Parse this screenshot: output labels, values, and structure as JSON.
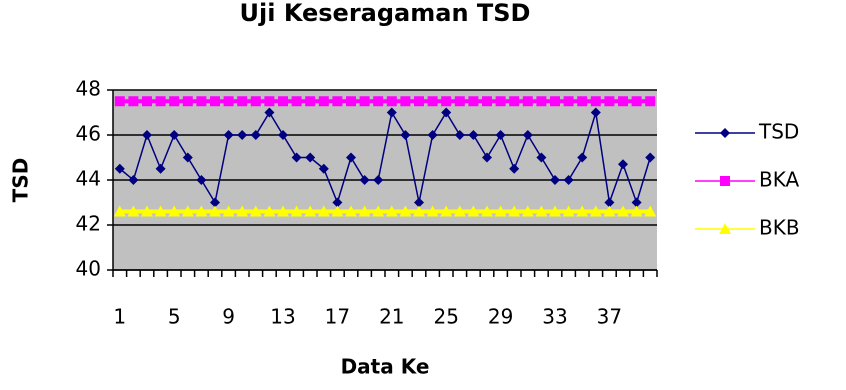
{
  "chart_data": {
    "type": "line",
    "title": "Uji Keseragaman TSD",
    "x_label": "Data Ke",
    "y_label": "TSD",
    "categories": [
      "1",
      null,
      null,
      null,
      "5",
      null,
      null,
      null,
      "9",
      null,
      null,
      null,
      "13",
      null,
      null,
      null,
      "17",
      null,
      null,
      null,
      "21",
      null,
      null,
      null,
      "25",
      null,
      null,
      null,
      "29",
      null,
      null,
      null,
      "33",
      null,
      null,
      null,
      "37",
      null,
      null,
      null
    ],
    "series": [
      {
        "name": "TSD",
        "color": "#000080",
        "marker": "diamond",
        "values": [
          44.5,
          44,
          46,
          44.5,
          46,
          45,
          44,
          43,
          46,
          46,
          46,
          47,
          46,
          45,
          45,
          44.5,
          43,
          45,
          44,
          44,
          47,
          46,
          43,
          46,
          47,
          46,
          46,
          45,
          46,
          44.5,
          46,
          45,
          44,
          44,
          45,
          47,
          43,
          44.7,
          43,
          45
        ]
      },
      {
        "name": "BKA",
        "color": "#ff00ff",
        "marker": "square",
        "values": [
          47.5,
          47.5,
          47.5,
          47.5,
          47.5,
          47.5,
          47.5,
          47.5,
          47.5,
          47.5,
          47.5,
          47.5,
          47.5,
          47.5,
          47.5,
          47.5,
          47.5,
          47.5,
          47.5,
          47.5,
          47.5,
          47.5,
          47.5,
          47.5,
          47.5,
          47.5,
          47.5,
          47.5,
          47.5,
          47.5,
          47.5,
          47.5,
          47.5,
          47.5,
          47.5,
          47.5,
          47.5,
          47.5,
          47.5,
          47.5
        ]
      },
      {
        "name": "BKB",
        "color": "#ffff00",
        "marker": "triangle",
        "values": [
          42.6,
          42.6,
          42.6,
          42.6,
          42.6,
          42.6,
          42.6,
          42.6,
          42.6,
          42.6,
          42.6,
          42.6,
          42.6,
          42.6,
          42.6,
          42.6,
          42.6,
          42.6,
          42.6,
          42.6,
          42.6,
          42.6,
          42.6,
          42.6,
          42.6,
          42.6,
          42.6,
          42.6,
          42.6,
          42.6,
          42.6,
          42.6,
          42.6,
          42.6,
          42.6,
          42.6,
          42.6,
          42.6,
          42.6,
          42.6
        ]
      }
    ],
    "ylim": [
      40,
      48
    ],
    "yticks": [
      40,
      42,
      44,
      46,
      48
    ],
    "grid": true,
    "plot_background": "#c0c0c0",
    "legend": "right"
  }
}
